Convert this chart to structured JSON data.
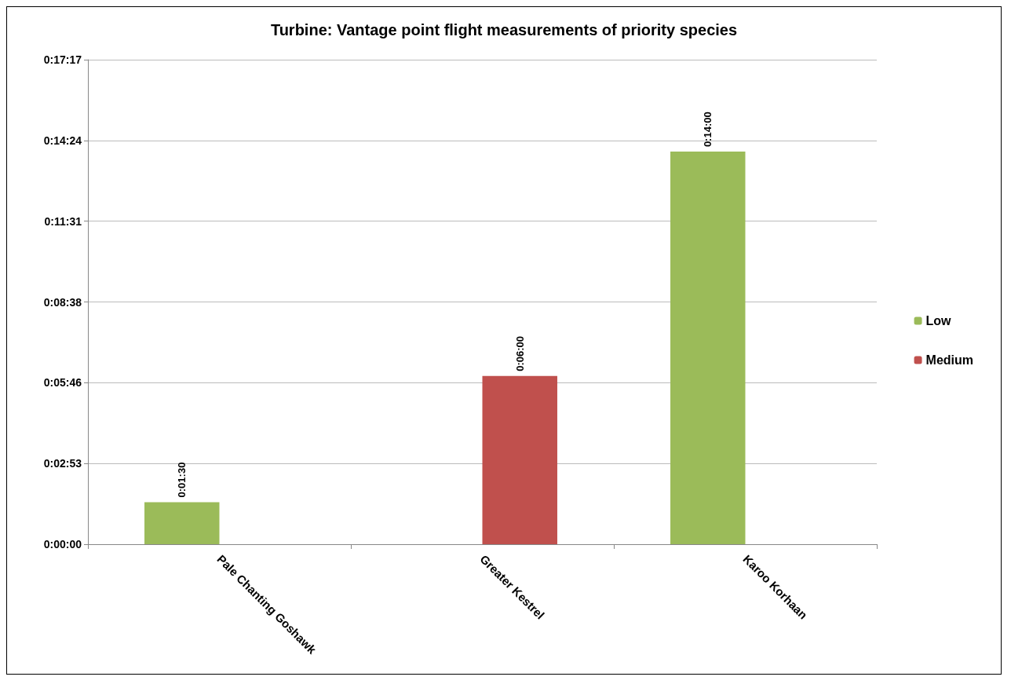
{
  "chart_data": {
    "type": "bar",
    "title": "Turbine: Vantage point flight measurements of priority species",
    "categories": [
      "Pale Chanting Goshawk",
      "Greater Kestrel",
      "Karoo Korhaan"
    ],
    "series": [
      {
        "name": "Low",
        "color": "#9bbb59",
        "values": [
          90,
          null,
          840
        ],
        "value_labels": [
          "0:01:30",
          null,
          "0:14:00"
        ]
      },
      {
        "name": "Medium",
        "color": "#c0504d",
        "values": [
          null,
          360,
          null
        ],
        "value_labels": [
          null,
          "0:06:00",
          null
        ]
      }
    ],
    "ylim": [
      0,
      1036.8
    ],
    "yticks": [
      {
        "value": 0,
        "label": "0:00:00"
      },
      {
        "value": 172.8,
        "label": "0:02:53"
      },
      {
        "value": 345.6,
        "label": "0:05:46"
      },
      {
        "value": 518.4,
        "label": "0:08:38"
      },
      {
        "value": 691.2,
        "label": "0:11:31"
      },
      {
        "value": 864,
        "label": "0:14:24"
      },
      {
        "value": 1036.8,
        "label": "0:17:17"
      }
    ],
    "grid": "y",
    "legend": "right"
  }
}
